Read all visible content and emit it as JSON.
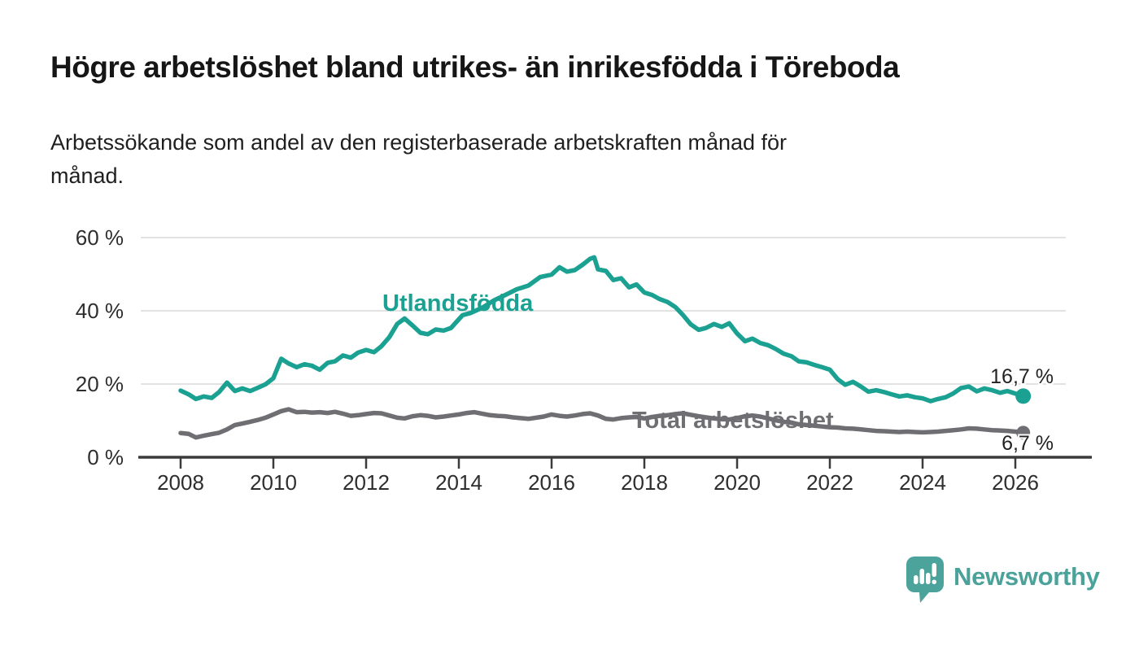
{
  "header": {
    "title": "Högre arbetslöshet bland utrikes- än inrikesfödda i Töreboda",
    "subtitle_line1": "Arbetssökande som andel av den registerbaserade arbetskraften månad för",
    "subtitle_line2": "månad."
  },
  "footer": {
    "brand": "Newsworthy"
  },
  "colors": {
    "accent_teal": "#1aa191",
    "line_gray": "#6f6f73",
    "grid": "#d8d8d8",
    "axis": "#3b3b3b",
    "text": "#1f1f1f",
    "logo_teal": "#4ba39b"
  },
  "chart_data": {
    "type": "line",
    "x_unit": "year (monthly observations)",
    "grid": true,
    "legend": "inline-labels",
    "x_axis": {
      "range": [
        2007.14,
        2026.96
      ],
      "ticks": [
        {
          "value": 2008,
          "label": "2008"
        },
        {
          "value": 2010,
          "label": "2010"
        },
        {
          "value": 2012,
          "label": "2012"
        },
        {
          "value": 2014,
          "label": "2014"
        },
        {
          "value": 2016,
          "label": "2016"
        },
        {
          "value": 2018,
          "label": "2018"
        },
        {
          "value": 2020,
          "label": "2020"
        },
        {
          "value": 2022,
          "label": "2022"
        },
        {
          "value": 2024,
          "label": "2024"
        },
        {
          "value": 2026,
          "label": "2026"
        }
      ]
    },
    "y_axis": {
      "unit": "%",
      "range": [
        0,
        63
      ],
      "ticks": [
        {
          "value": 0,
          "label": "0 %"
        },
        {
          "value": 20,
          "label": "20 %"
        },
        {
          "value": 40,
          "label": "40 %"
        },
        {
          "value": 60,
          "label": "60 %"
        }
      ]
    },
    "series": [
      {
        "name": "Utlandsfödda",
        "color": "#1aa191",
        "end_label": "16,7 %",
        "end_value": 16.7,
        "points": [
          [
            2008.0,
            18.2
          ],
          [
            2008.17,
            17.2
          ],
          [
            2008.33,
            15.9
          ],
          [
            2008.5,
            16.6
          ],
          [
            2008.67,
            16.2
          ],
          [
            2008.83,
            17.8
          ],
          [
            2009.0,
            20.4
          ],
          [
            2009.17,
            18.1
          ],
          [
            2009.33,
            18.8
          ],
          [
            2009.5,
            18.1
          ],
          [
            2009.67,
            19.0
          ],
          [
            2009.83,
            19.9
          ],
          [
            2010.0,
            21.6
          ],
          [
            2010.17,
            26.9
          ],
          [
            2010.33,
            25.6
          ],
          [
            2010.5,
            24.6
          ],
          [
            2010.67,
            25.4
          ],
          [
            2010.83,
            25.0
          ],
          [
            2011.0,
            23.9
          ],
          [
            2011.17,
            25.8
          ],
          [
            2011.33,
            26.2
          ],
          [
            2011.5,
            27.8
          ],
          [
            2011.67,
            27.2
          ],
          [
            2011.83,
            28.6
          ],
          [
            2012.0,
            29.3
          ],
          [
            2012.17,
            28.7
          ],
          [
            2012.33,
            30.3
          ],
          [
            2012.5,
            32.8
          ],
          [
            2012.67,
            36.4
          ],
          [
            2012.83,
            37.9
          ],
          [
            2013.0,
            36.0
          ],
          [
            2013.17,
            34.0
          ],
          [
            2013.33,
            33.6
          ],
          [
            2013.5,
            34.9
          ],
          [
            2013.67,
            34.6
          ],
          [
            2013.83,
            35.3
          ],
          [
            2014.0,
            37.7
          ],
          [
            2014.08,
            38.8
          ],
          [
            2014.25,
            39.4
          ],
          [
            2014.5,
            40.8
          ],
          [
            2014.75,
            42.8
          ],
          [
            2015.0,
            44.3
          ],
          [
            2015.25,
            45.9
          ],
          [
            2015.5,
            46.9
          ],
          [
            2015.75,
            49.2
          ],
          [
            2016.0,
            49.9
          ],
          [
            2016.17,
            51.9
          ],
          [
            2016.33,
            50.7
          ],
          [
            2016.5,
            51.1
          ],
          [
            2016.67,
            52.6
          ],
          [
            2016.83,
            54.2
          ],
          [
            2016.92,
            54.6
          ],
          [
            2017.0,
            51.3
          ],
          [
            2017.17,
            50.9
          ],
          [
            2017.33,
            48.4
          ],
          [
            2017.5,
            48.9
          ],
          [
            2017.67,
            46.4
          ],
          [
            2017.83,
            47.2
          ],
          [
            2018.0,
            45.0
          ],
          [
            2018.17,
            44.3
          ],
          [
            2018.33,
            43.2
          ],
          [
            2018.5,
            42.4
          ],
          [
            2018.67,
            41.0
          ],
          [
            2018.83,
            38.9
          ],
          [
            2019.0,
            36.3
          ],
          [
            2019.17,
            34.8
          ],
          [
            2019.33,
            35.3
          ],
          [
            2019.5,
            36.4
          ],
          [
            2019.67,
            35.6
          ],
          [
            2019.83,
            36.6
          ],
          [
            2020.0,
            33.8
          ],
          [
            2020.17,
            31.7
          ],
          [
            2020.33,
            32.4
          ],
          [
            2020.5,
            31.2
          ],
          [
            2020.67,
            30.6
          ],
          [
            2020.83,
            29.6
          ],
          [
            2021.0,
            28.3
          ],
          [
            2021.17,
            27.6
          ],
          [
            2021.33,
            26.2
          ],
          [
            2021.5,
            25.9
          ],
          [
            2021.67,
            25.2
          ],
          [
            2021.83,
            24.6
          ],
          [
            2022.0,
            23.9
          ],
          [
            2022.17,
            21.3
          ],
          [
            2022.33,
            19.8
          ],
          [
            2022.5,
            20.6
          ],
          [
            2022.67,
            19.3
          ],
          [
            2022.83,
            17.9
          ],
          [
            2023.0,
            18.3
          ],
          [
            2023.17,
            17.8
          ],
          [
            2023.33,
            17.2
          ],
          [
            2023.5,
            16.6
          ],
          [
            2023.67,
            16.9
          ],
          [
            2023.83,
            16.4
          ],
          [
            2024.0,
            16.1
          ],
          [
            2024.17,
            15.3
          ],
          [
            2024.33,
            15.9
          ],
          [
            2024.5,
            16.4
          ],
          [
            2024.67,
            17.5
          ],
          [
            2024.83,
            18.9
          ],
          [
            2025.0,
            19.3
          ],
          [
            2025.17,
            18.0
          ],
          [
            2025.33,
            18.8
          ],
          [
            2025.5,
            18.3
          ],
          [
            2025.67,
            17.6
          ],
          [
            2025.83,
            18.1
          ],
          [
            2026.0,
            17.4
          ],
          [
            2026.17,
            16.7
          ]
        ]
      },
      {
        "name": "Total arbetslöshet",
        "color": "#6f6f73",
        "end_label": "6,7 %",
        "end_value": 6.7,
        "points": [
          [
            2008.0,
            6.6
          ],
          [
            2008.17,
            6.4
          ],
          [
            2008.33,
            5.4
          ],
          [
            2008.5,
            5.9
          ],
          [
            2008.67,
            6.3
          ],
          [
            2008.83,
            6.7
          ],
          [
            2009.0,
            7.6
          ],
          [
            2009.17,
            8.8
          ],
          [
            2009.33,
            9.2
          ],
          [
            2009.5,
            9.7
          ],
          [
            2009.67,
            10.2
          ],
          [
            2009.83,
            10.8
          ],
          [
            2010.0,
            11.7
          ],
          [
            2010.17,
            12.6
          ],
          [
            2010.33,
            13.1
          ],
          [
            2010.5,
            12.3
          ],
          [
            2010.67,
            12.4
          ],
          [
            2010.83,
            12.2
          ],
          [
            2011.0,
            12.3
          ],
          [
            2011.17,
            12.1
          ],
          [
            2011.33,
            12.4
          ],
          [
            2011.5,
            11.9
          ],
          [
            2011.67,
            11.3
          ],
          [
            2011.83,
            11.5
          ],
          [
            2012.0,
            11.8
          ],
          [
            2012.17,
            12.1
          ],
          [
            2012.33,
            12.0
          ],
          [
            2012.5,
            11.4
          ],
          [
            2012.67,
            10.8
          ],
          [
            2012.83,
            10.6
          ],
          [
            2013.0,
            11.2
          ],
          [
            2013.17,
            11.5
          ],
          [
            2013.33,
            11.3
          ],
          [
            2013.5,
            10.9
          ],
          [
            2013.67,
            11.1
          ],
          [
            2013.83,
            11.4
          ],
          [
            2014.0,
            11.7
          ],
          [
            2014.17,
            12.1
          ],
          [
            2014.33,
            12.3
          ],
          [
            2014.5,
            11.9
          ],
          [
            2014.67,
            11.5
          ],
          [
            2014.83,
            11.3
          ],
          [
            2015.0,
            11.2
          ],
          [
            2015.17,
            10.9
          ],
          [
            2015.33,
            10.7
          ],
          [
            2015.5,
            10.5
          ],
          [
            2015.67,
            10.8
          ],
          [
            2015.83,
            11.1
          ],
          [
            2016.0,
            11.7
          ],
          [
            2016.17,
            11.3
          ],
          [
            2016.33,
            11.1
          ],
          [
            2016.5,
            11.4
          ],
          [
            2016.67,
            11.8
          ],
          [
            2016.83,
            12.0
          ],
          [
            2017.0,
            11.4
          ],
          [
            2017.17,
            10.5
          ],
          [
            2017.33,
            10.3
          ],
          [
            2017.5,
            10.7
          ],
          [
            2017.67,
            10.9
          ],
          [
            2017.83,
            11.0
          ],
          [
            2018.0,
            10.6
          ],
          [
            2018.17,
            11.0
          ],
          [
            2018.33,
            11.3
          ],
          [
            2018.5,
            11.5
          ],
          [
            2018.67,
            11.8
          ],
          [
            2018.83,
            12.0
          ],
          [
            2019.0,
            11.6
          ],
          [
            2019.17,
            11.2
          ],
          [
            2019.33,
            10.9
          ],
          [
            2019.5,
            10.6
          ],
          [
            2019.67,
            10.4
          ],
          [
            2019.83,
            10.3
          ],
          [
            2020.0,
            10.7
          ],
          [
            2020.17,
            11.2
          ],
          [
            2020.33,
            11.4
          ],
          [
            2020.5,
            11.1
          ],
          [
            2020.67,
            10.6
          ],
          [
            2020.83,
            10.1
          ],
          [
            2021.0,
            9.7
          ],
          [
            2021.17,
            9.4
          ],
          [
            2021.33,
            9.0
          ],
          [
            2021.5,
            8.8
          ],
          [
            2021.67,
            8.6
          ],
          [
            2021.83,
            8.4
          ],
          [
            2022.0,
            8.2
          ],
          [
            2022.17,
            8.1
          ],
          [
            2022.33,
            7.9
          ],
          [
            2022.5,
            7.8
          ],
          [
            2022.67,
            7.6
          ],
          [
            2022.83,
            7.4
          ],
          [
            2023.0,
            7.2
          ],
          [
            2023.17,
            7.1
          ],
          [
            2023.33,
            7.0
          ],
          [
            2023.5,
            6.9
          ],
          [
            2023.67,
            7.0
          ],
          [
            2023.83,
            6.9
          ],
          [
            2024.0,
            6.8
          ],
          [
            2024.17,
            6.9
          ],
          [
            2024.33,
            7.0
          ],
          [
            2024.5,
            7.2
          ],
          [
            2024.67,
            7.4
          ],
          [
            2024.83,
            7.6
          ],
          [
            2025.0,
            7.9
          ],
          [
            2025.17,
            7.8
          ],
          [
            2025.33,
            7.6
          ],
          [
            2025.5,
            7.4
          ],
          [
            2025.67,
            7.3
          ],
          [
            2025.83,
            7.2
          ],
          [
            2026.0,
            7.0
          ],
          [
            2026.17,
            6.7
          ]
        ]
      }
    ]
  }
}
